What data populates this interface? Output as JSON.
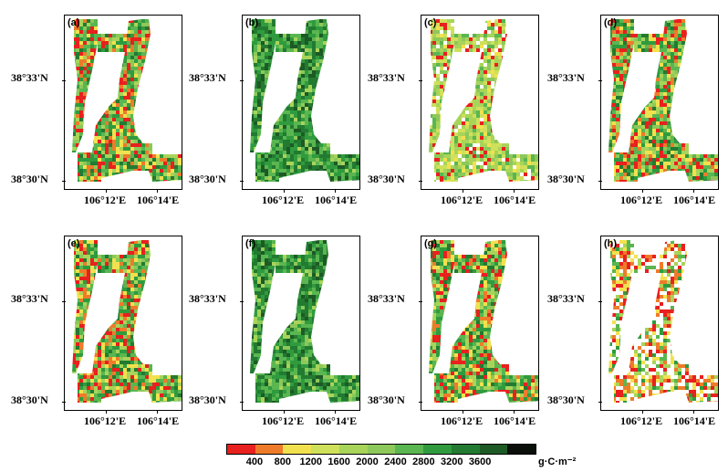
{
  "panels": [
    {
      "label": "(a)",
      "scheme": "mixed"
    },
    {
      "label": "(b)",
      "scheme": "green"
    },
    {
      "label": "(c)",
      "scheme": "light"
    },
    {
      "label": "(d)",
      "scheme": "mixed"
    },
    {
      "label": "(e)",
      "scheme": "mixed"
    },
    {
      "label": "(f)",
      "scheme": "green"
    },
    {
      "label": "(g)",
      "scheme": "mixed"
    },
    {
      "label": "(h)",
      "scheme": "sparse"
    }
  ],
  "axes": {
    "lat_top": "38°33'N",
    "lat_bottom": "38°30'N",
    "lon_left": "106°12'E",
    "lon_right": "106°14'E"
  },
  "legend": {
    "colors": [
      "#e8201e",
      "#ee7b2a",
      "#f2e14e",
      "#cfe05a",
      "#a8d45a",
      "#8dc85a",
      "#5ab650",
      "#2f9b3e",
      "#237a31",
      "#1d5a25",
      "#0a0f0a"
    ],
    "labels": [
      "400",
      "800",
      "1200",
      "1600",
      "2000",
      "2400",
      "2800",
      "3200",
      "3600"
    ],
    "unit": "g·C·m⁻²"
  }
}
